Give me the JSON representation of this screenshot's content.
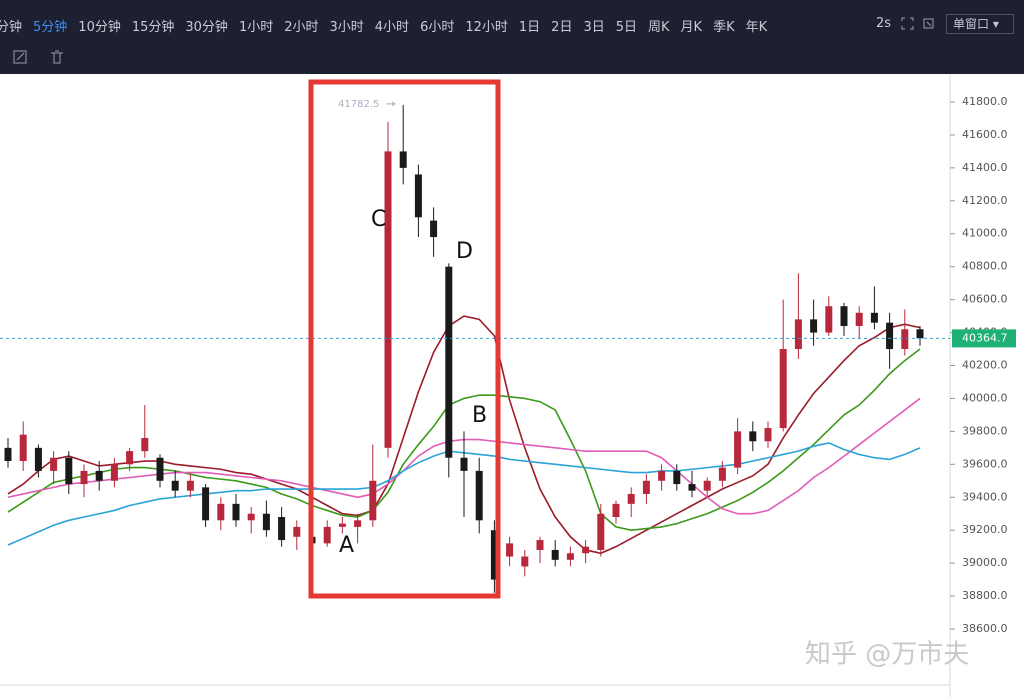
{
  "toolbar": {
    "intervals": [
      "分钟",
      "5分钟",
      "10分钟",
      "15分钟",
      "30分钟",
      "1小时",
      "2小时",
      "3小时",
      "4小时",
      "6小时",
      "12小时",
      "1日",
      "2日",
      "3日",
      "5日",
      "周K",
      "月K",
      "季K",
      "年K"
    ],
    "active": 1,
    "refresh": "2s",
    "window": "单窗口"
  },
  "chart_data": {
    "type": "candlestick",
    "open": [
      39700,
      39620,
      39700,
      39560,
      39640,
      39480,
      39560,
      39500,
      39600,
      39680,
      39640,
      39500,
      39440,
      39460,
      39260,
      39360,
      39260,
      39300,
      39280,
      39160,
      39160,
      39120,
      39220,
      39220,
      39260,
      39700,
      41500,
      41360,
      41080,
      40800,
      39640,
      39560,
      39200,
      39040,
      38980,
      39080,
      39080,
      39020,
      39060,
      39080,
      39280,
      39360,
      39420,
      39500,
      39560,
      39480,
      39440,
      39500,
      39580,
      39800,
      39740,
      39820,
      40300,
      40480,
      40400,
      40560,
      40440,
      40520,
      40460,
      40300,
      40420
    ],
    "high": [
      39760,
      39860,
      39720,
      39680,
      39680,
      39600,
      39620,
      39640,
      39700,
      39960,
      39660,
      39560,
      39540,
      39480,
      39400,
      39420,
      39340,
      39380,
      39340,
      39260,
      39200,
      39260,
      39280,
      39300,
      39720,
      41680,
      41782.5,
      41420,
      41160,
      40820,
      39800,
      39640,
      39260,
      39160,
      39080,
      39160,
      39140,
      39100,
      39140,
      39360,
      39380,
      39460,
      39540,
      39600,
      39600,
      39560,
      39520,
      39620,
      39880,
      39860,
      39860,
      40600,
      40760,
      40600,
      40620,
      40580,
      40560,
      40680,
      40520,
      40540,
      40440
    ],
    "low": [
      39580,
      39560,
      39520,
      39480,
      39420,
      39400,
      39440,
      39460,
      39560,
      39640,
      39460,
      39400,
      39400,
      39220,
      39200,
      39220,
      39180,
      39160,
      39100,
      39080,
      39060,
      39100,
      39180,
      39120,
      39220,
      39640,
      41300,
      40980,
      40860,
      39520,
      39280,
      39180,
      38820,
      38980,
      38920,
      39000,
      38980,
      38980,
      39000,
      39040,
      39240,
      39280,
      39360,
      39440,
      39440,
      39400,
      39400,
      39460,
      39540,
      39680,
      39700,
      39800,
      40240,
      40320,
      40380,
      40380,
      40360,
      40420,
      40180,
      40260,
      40320
    ],
    "close": [
      39620,
      39780,
      39560,
      39640,
      39480,
      39560,
      39500,
      39600,
      39680,
      39760,
      39500,
      39440,
      39500,
      39260,
      39360,
      39260,
      39300,
      39200,
      39140,
      39220,
      39120,
      39220,
      39240,
      39260,
      39500,
      41500,
      41400,
      41100,
      40980,
      39640,
      39560,
      39260,
      38900,
      39120,
      39040,
      39140,
      39020,
      39060,
      39100,
      39300,
      39360,
      39420,
      39500,
      39560,
      39480,
      39440,
      39500,
      39580,
      39800,
      39740,
      39820,
      40300,
      40480,
      40400,
      40560,
      40440,
      40520,
      40460,
      40300,
      40420,
      40364.7
    ],
    "up_color": "#b8283c",
    "down_color": "#1a1a1a",
    "series": [
      {
        "color": "#9b1b2b",
        "values": [
          39420,
          39480,
          39560,
          39630,
          39650,
          39620,
          39590,
          39600,
          39610,
          39620,
          39620,
          39600,
          39590,
          39580,
          39570,
          39550,
          39540,
          39510,
          39480,
          39450,
          39400,
          39350,
          39300,
          39290,
          39320,
          39480,
          39760,
          40040,
          40280,
          40440,
          40500,
          40480,
          40380,
          39990,
          39700,
          39450,
          39280,
          39160,
          39080,
          39060,
          39100,
          39150,
          39200,
          39250,
          39300,
          39350,
          39400,
          39450,
          39490,
          39530,
          39600,
          39760,
          39900,
          40030,
          40130,
          40230,
          40320,
          40370,
          40430,
          40450,
          40430
        ]
      },
      {
        "color": "#3a9a1a",
        "values": [
          39310,
          39370,
          39430,
          39490,
          39510,
          39530,
          39550,
          39570,
          39580,
          39580,
          39570,
          39560,
          39540,
          39520,
          39510,
          39500,
          39480,
          39460,
          39420,
          39390,
          39350,
          39320,
          39290,
          39280,
          39320,
          39430,
          39600,
          39720,
          39830,
          39960,
          40000,
          40020,
          40020,
          40010,
          40000,
          39980,
          39930,
          39750,
          39560,
          39300,
          39220,
          39200,
          39210,
          39220,
          39240,
          39270,
          39300,
          39340,
          39380,
          39430,
          39490,
          39560,
          39640,
          39720,
          39810,
          39900,
          39960,
          40050,
          40150,
          40230,
          40300
        ]
      },
      {
        "color": "#e05cb8",
        "values": [
          39400,
          39420,
          39440,
          39460,
          39480,
          39490,
          39500,
          39510,
          39520,
          39530,
          39540,
          39550,
          39550,
          39550,
          39540,
          39530,
          39520,
          39510,
          39500,
          39480,
          39460,
          39440,
          39420,
          39400,
          39420,
          39480,
          39560,
          39650,
          39710,
          39740,
          39750,
          39750,
          39740,
          39730,
          39720,
          39710,
          39700,
          39690,
          39680,
          39680,
          39680,
          39680,
          39680,
          39640,
          39560,
          39480,
          39400,
          39330,
          39300,
          39300,
          39320,
          39380,
          39440,
          39520,
          39580,
          39650,
          39720,
          39790,
          39860,
          39930,
          40000
        ]
      },
      {
        "color": "#2aa3d8",
        "values": [
          39110,
          39150,
          39190,
          39230,
          39260,
          39280,
          39300,
          39320,
          39350,
          39370,
          39390,
          39400,
          39410,
          39420,
          39430,
          39440,
          39440,
          39450,
          39450,
          39450,
          39450,
          39450,
          39450,
          39450,
          39460,
          39500,
          39560,
          39610,
          39650,
          39680,
          39670,
          39660,
          39650,
          39630,
          39620,
          39610,
          39600,
          39590,
          39580,
          39570,
          39560,
          39550,
          39550,
          39560,
          39560,
          39570,
          39580,
          39590,
          39600,
          39620,
          39640,
          39660,
          39680,
          39710,
          39730,
          39690,
          39660,
          39640,
          39630,
          39660,
          39700
        ]
      }
    ],
    "ylim": [
      38260,
      41970
    ],
    "yticks": [
      {
        "value": 38600,
        "label": "38600.0"
      },
      {
        "value": 38800,
        "label": "38800.0"
      },
      {
        "value": 39000,
        "label": "39000.0"
      },
      {
        "value": 39200,
        "label": "39200.0"
      },
      {
        "value": 39400,
        "label": "39400.0"
      },
      {
        "value": 39600,
        "label": "39600.0"
      },
      {
        "value": 39800,
        "label": "39800.0"
      },
      {
        "value": 40000,
        "label": "40000.0"
      },
      {
        "value": 40200,
        "label": "40200.0"
      },
      {
        "value": 40400,
        "label": "40400.0"
      },
      {
        "value": 40600,
        "label": "40600.0"
      },
      {
        "value": 40800,
        "label": "40800.0"
      },
      {
        "value": 41000,
        "label": "41000.0"
      },
      {
        "value": 41200,
        "label": "41200.0"
      },
      {
        "value": 41400,
        "label": "41400.0"
      },
      {
        "value": 41600,
        "label": "41600.0"
      },
      {
        "value": 41800,
        "label": "41800.0"
      }
    ],
    "last_price": 40364.7,
    "high_label": 41782.5,
    "annotations": [
      "A",
      "B",
      "C",
      "D"
    ]
  },
  "watermark": "知乎 @万市夫"
}
